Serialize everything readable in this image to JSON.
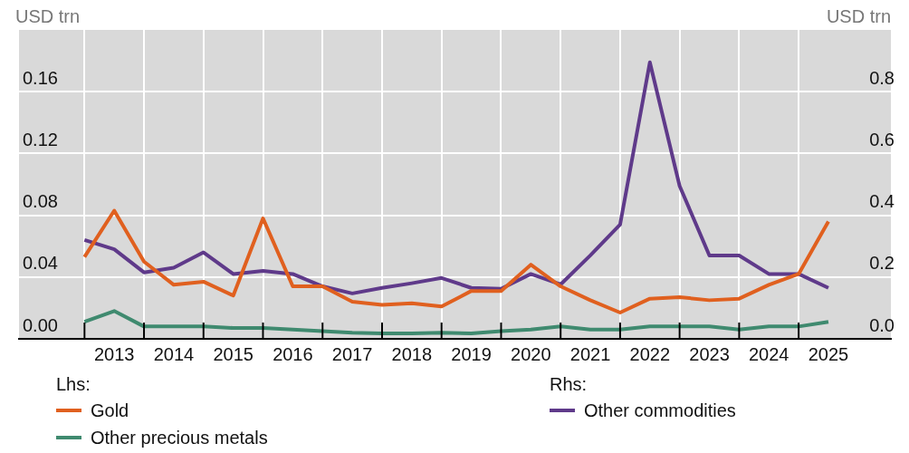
{
  "chart_data": {
    "type": "line",
    "ylabel": "USD trn",
    "y2label": "USD trn",
    "x": [
      2012.5,
      2013,
      2013.5,
      2014,
      2014.5,
      2015,
      2015.5,
      2016,
      2016.5,
      2017,
      2017.5,
      2018,
      2018.5,
      2019,
      2019.5,
      2020,
      2020.5,
      2021,
      2021.5,
      2022,
      2022.5,
      2023,
      2023.5,
      2024,
      2024.5,
      2025
    ],
    "xlim": [
      2011.4,
      2026.05
    ],
    "xticks": [
      {
        "value": 2012.5,
        "label": null
      },
      2013,
      {
        "value": 2013.5,
        "label": null
      },
      2014,
      {
        "value": 2014.5,
        "label": null
      },
      2015,
      {
        "value": 2015.5,
        "label": null
      },
      2016,
      {
        "value": 2016.5,
        "label": null
      },
      2017,
      {
        "value": 2017.5,
        "label": null
      },
      2018,
      {
        "value": 2018.5,
        "label": null
      },
      2019,
      {
        "value": 2019.5,
        "label": null
      },
      2020,
      {
        "value": 2020.5,
        "label": null
      },
      2021,
      {
        "value": 2021.5,
        "label": null
      },
      2022,
      {
        "value": 2022.5,
        "label": null
      },
      2023,
      {
        "value": 2023.5,
        "label": null
      },
      2024,
      {
        "value": 2024.5,
        "label": null
      },
      2025
    ],
    "ylim": [
      0,
      0.2
    ],
    "yticks": [
      {
        "value": 0,
        "label": "0.00"
      },
      {
        "value": 0.04,
        "label": "0.04"
      },
      {
        "value": 0.08,
        "label": "0.08"
      },
      {
        "value": 0.12,
        "label": "0.12"
      },
      {
        "value": 0.16,
        "label": "0.16"
      }
    ],
    "y2lim": [
      0,
      1
    ],
    "y2ticks": [
      {
        "value": 0,
        "label": "0.0"
      },
      0.2,
      0.4,
      0.6,
      0.8
    ],
    "series": [
      {
        "name": "Gold",
        "color": "#e0601f",
        "values": [
          0.053,
          0.083,
          0.05,
          0.035,
          0.037,
          0.028,
          0.078,
          0.034,
          0.034,
          0.024,
          0.022,
          0.023,
          0.021,
          0.031,
          0.031,
          0.048,
          0.034,
          0.025,
          0.017,
          0.026,
          0.027,
          0.025,
          0.026,
          0.035,
          0.042,
          0.076
        ]
      },
      {
        "name": "Other precious metals",
        "color": "#3f8a6f",
        "values": [
          0.011,
          0.018,
          0.008,
          0.008,
          0.008,
          0.007,
          0.007,
          0.006,
          0.005,
          0.004,
          0.0035,
          0.0035,
          0.004,
          0.0035,
          0.005,
          0.006,
          0.008,
          0.006,
          0.006,
          0.008,
          0.008,
          0.008,
          0.006,
          0.008,
          0.008,
          0.011
        ]
      },
      {
        "name": "Other commodities",
        "color": "#5f3a8a",
        "axis": "y2",
        "values": [
          0.32,
          0.29,
          0.215,
          0.23,
          0.28,
          0.21,
          0.22,
          0.21,
          0.17,
          0.147,
          0.165,
          0.18,
          0.197,
          0.165,
          0.162,
          0.21,
          0.176,
          0.27,
          0.37,
          0.895,
          0.495,
          0.27,
          0.27,
          0.21,
          0.21,
          0.165
        ]
      }
    ],
    "grid": true,
    "legend": "bottom",
    "annotations": [
      "Lhs:",
      "Rhs:"
    ]
  }
}
